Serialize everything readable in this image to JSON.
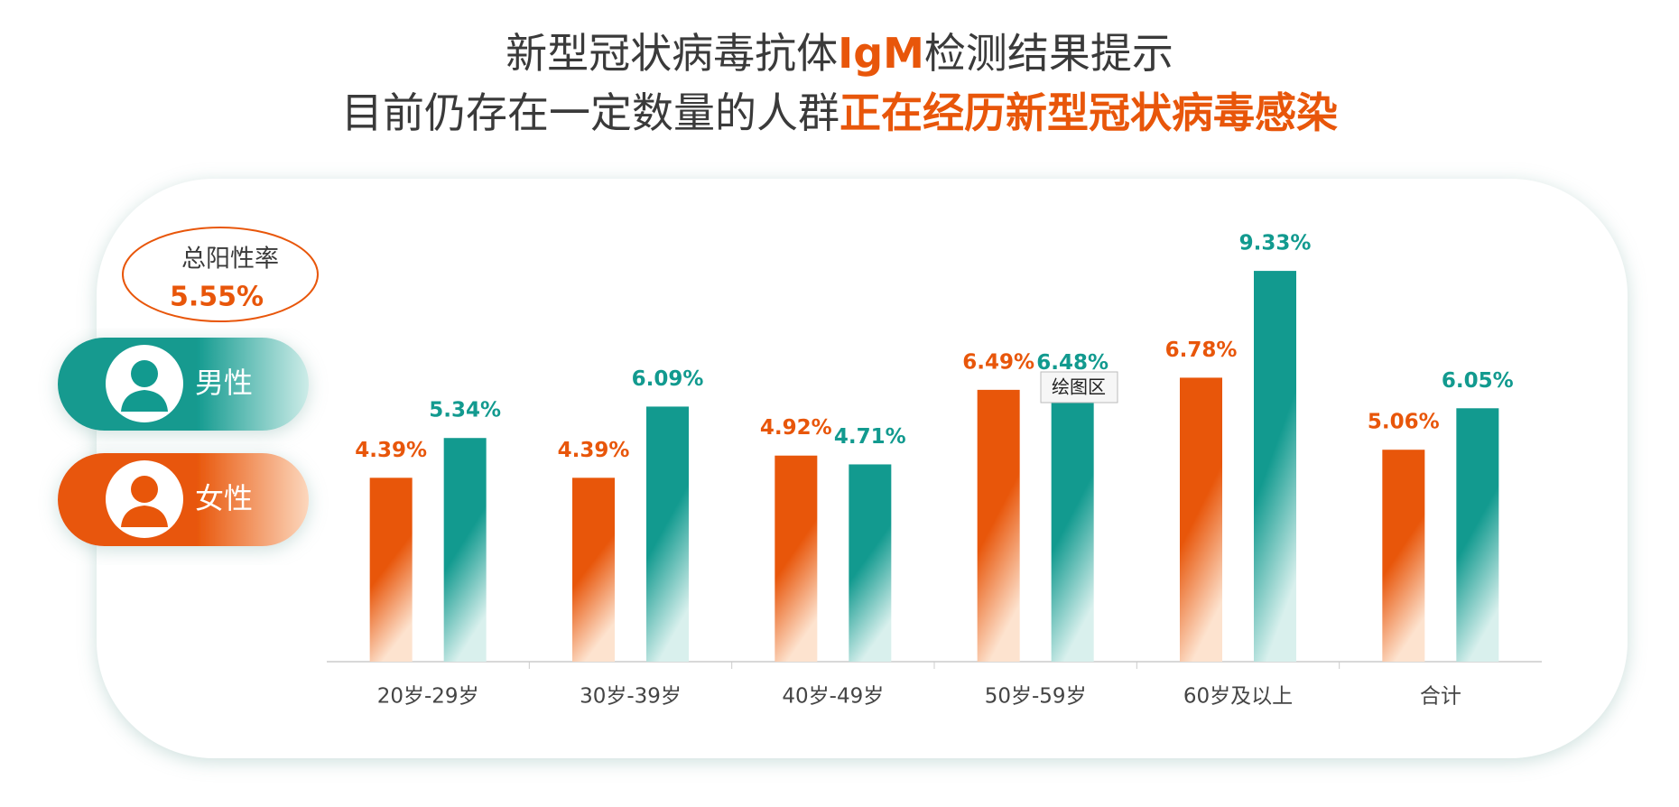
{
  "chart_data": {
    "type": "bar",
    "title_lines": [
      [
        {
          "text": "新型冠状病毒抗体",
          "highlight": false
        },
        {
          "text": "IgM",
          "highlight": true
        },
        {
          "text": "检测结果提示",
          "highlight": false
        }
      ],
      [
        {
          "text": "目前仍存在一定数量的人群",
          "highlight": false
        },
        {
          "text": "正在经历新型冠状病毒感染",
          "highlight": true
        }
      ]
    ],
    "annotation": {
      "label": "总阳性率",
      "value": "5.55%"
    },
    "tooltip": "绘图区",
    "categories": [
      "20岁-29岁",
      "30岁-39岁",
      "40岁-49岁",
      "50岁-59岁",
      "60岁及以上",
      "合计"
    ],
    "series": [
      {
        "name": "女性",
        "color": "#e8560a",
        "values": [
          4.39,
          4.39,
          4.92,
          6.49,
          6.78,
          5.06
        ],
        "value_labels": [
          "4.39%",
          "4.39%",
          "4.92%",
          "6.49%",
          "6.78%",
          "5.06%"
        ]
      },
      {
        "name": "男性",
        "color": "#129a8f",
        "values": [
          5.34,
          6.09,
          4.71,
          6.48,
          9.33,
          6.05
        ],
        "value_labels": [
          "5.34%",
          "6.09%",
          "4.71%",
          "6.48%",
          "9.33%",
          "6.05%"
        ]
      }
    ],
    "ylim": [
      0,
      10
    ],
    "highlight_color": "#e8560a",
    "text_color": "#3a3a3a"
  }
}
